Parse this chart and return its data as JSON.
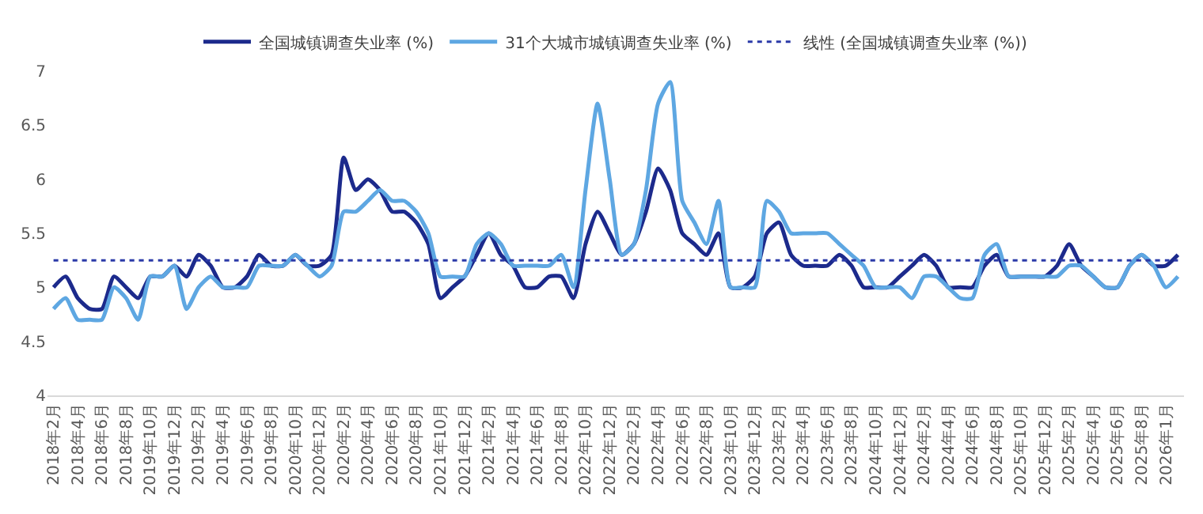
{
  "chart_data": {
    "type": "line",
    "categories": [
      "2018年2月",
      null,
      "2018年4月",
      null,
      "2018年6月",
      null,
      "2018年8月",
      null,
      "2019年10月",
      null,
      "2019年12月",
      null,
      "2019年2月",
      null,
      "2019年4月",
      null,
      "2019年6月",
      null,
      "2019年8月",
      null,
      "2020年10月",
      null,
      "2020年12月",
      null,
      "2020年2月",
      null,
      "2020年4月",
      null,
      "2020年6月",
      null,
      "2020年8月",
      null,
      "2021年10月",
      null,
      "2021年12月",
      null,
      "2021年2月",
      null,
      "2021年4月",
      null,
      "2021年6月",
      null,
      "2021年8月",
      null,
      "2022年10月",
      null,
      "2022年12月",
      null,
      "2022年2月",
      null,
      "2022年4月",
      null,
      "2022年6月",
      null,
      "2022年8月",
      null,
      "2023年10月",
      null,
      "2023年12月",
      null,
      "2023年2月",
      null,
      "2023年4月",
      null,
      "2023年6月",
      null,
      "2023年8月",
      null,
      "2024年10月",
      null,
      "2024年12月",
      null,
      "2024年2月",
      null,
      "2024年4月",
      null,
      "2024年6月",
      null,
      "2024年8月",
      null,
      "2025年10月",
      null,
      "2025年12月",
      null,
      "2025年2月",
      null,
      "2025年4月",
      null,
      "2025年6月",
      null,
      "2025年8月",
      null,
      "2026年1月",
      null
    ],
    "series": [
      {
        "name": "全国城镇调查失业率 (%)",
        "color": "#1c2a8c",
        "values": [
          5.0,
          5.1,
          4.9,
          4.8,
          4.8,
          5.1,
          5.0,
          4.9,
          5.1,
          5.1,
          5.2,
          5.1,
          5.3,
          5.2,
          5.0,
          5.0,
          5.1,
          5.3,
          5.2,
          5.2,
          5.3,
          5.2,
          5.2,
          5.3,
          6.2,
          5.9,
          6.0,
          5.9,
          5.7,
          5.7,
          5.6,
          5.4,
          4.9,
          5.0,
          5.1,
          5.3,
          5.5,
          5.3,
          5.2,
          5.0,
          5.0,
          5.1,
          5.1,
          4.9,
          5.4,
          5.7,
          5.5,
          5.3,
          5.4,
          5.7,
          6.1,
          5.9,
          5.5,
          5.4,
          5.3,
          5.5,
          5.0,
          5.0,
          5.1,
          5.5,
          5.6,
          5.3,
          5.2,
          5.2,
          5.2,
          5.3,
          5.2,
          5.0,
          5.0,
          5.0,
          5.1,
          5.2,
          5.3,
          5.2,
          5.0,
          5.0,
          5.0,
          5.2,
          5.3,
          5.1,
          5.1,
          5.1,
          5.1,
          5.2,
          5.4,
          5.2,
          5.1,
          5.0,
          5.0,
          5.2,
          5.3,
          5.2,
          5.2,
          5.3
        ]
      },
      {
        "name": "31个大城市城镇调查失业率 (%)",
        "color": "#5ea7e2",
        "values": [
          4.8,
          4.9,
          4.7,
          4.7,
          4.7,
          5.0,
          4.9,
          4.7,
          5.1,
          5.1,
          5.2,
          4.8,
          5.0,
          5.1,
          5.0,
          5.0,
          5.0,
          5.2,
          5.2,
          5.2,
          5.3,
          5.2,
          5.1,
          5.2,
          5.7,
          5.7,
          5.8,
          5.9,
          5.8,
          5.8,
          5.7,
          5.5,
          5.1,
          5.1,
          5.1,
          5.4,
          5.5,
          5.4,
          5.2,
          5.2,
          5.2,
          5.2,
          5.3,
          5.0,
          5.9,
          6.7,
          6.0,
          5.3,
          5.4,
          5.9,
          6.7,
          6.9,
          5.8,
          5.6,
          5.4,
          5.8,
          5.0,
          5.0,
          5.0,
          5.8,
          5.7,
          5.5,
          5.5,
          5.5,
          5.5,
          5.4,
          5.3,
          5.2,
          5.0,
          5.0,
          5.0,
          4.9,
          5.1,
          5.1,
          5.0,
          4.9,
          4.9,
          5.3,
          5.4,
          5.1,
          5.1,
          5.1,
          5.1,
          5.1,
          5.2,
          5.2,
          5.1,
          5.0,
          5.0,
          5.2,
          5.3,
          5.2,
          5.0,
          5.1
        ]
      },
      {
        "name": "线性 (全国城镇调查失业率 (%))",
        "color": "#2b3aa8",
        "line_style": "dotted",
        "values": [
          5.25,
          5.25,
          5.25,
          5.25,
          5.25,
          5.25,
          5.25,
          5.25,
          5.25,
          5.25,
          5.25,
          5.25,
          5.25,
          5.25,
          5.25,
          5.25,
          5.25,
          5.25,
          5.25,
          5.25,
          5.25,
          5.25,
          5.25,
          5.25,
          5.25,
          5.25,
          5.25,
          5.25,
          5.25,
          5.25,
          5.25,
          5.25,
          5.25,
          5.25,
          5.25,
          5.25,
          5.25,
          5.25,
          5.25,
          5.25,
          5.25,
          5.25,
          5.25,
          5.25,
          5.25,
          5.25,
          5.25,
          5.25,
          5.25,
          5.25,
          5.25,
          5.25,
          5.25,
          5.25,
          5.25,
          5.25,
          5.25,
          5.25,
          5.25,
          5.25,
          5.25,
          5.25,
          5.25,
          5.25,
          5.25,
          5.25,
          5.25,
          5.25,
          5.25,
          5.25,
          5.25,
          5.25,
          5.25,
          5.25,
          5.25,
          5.25,
          5.25,
          5.25,
          5.25,
          5.25,
          5.25,
          5.25,
          5.25,
          5.25,
          5.25,
          5.25,
          5.25,
          5.25,
          5.25,
          5.25,
          5.25,
          5.25,
          5.25,
          5.25
        ]
      }
    ],
    "ylim": [
      4,
      7
    ],
    "yticks": [
      4,
      4.5,
      5,
      5.5,
      6,
      6.5,
      7
    ],
    "legend": "top",
    "marker": "none",
    "line_style": "solid"
  }
}
